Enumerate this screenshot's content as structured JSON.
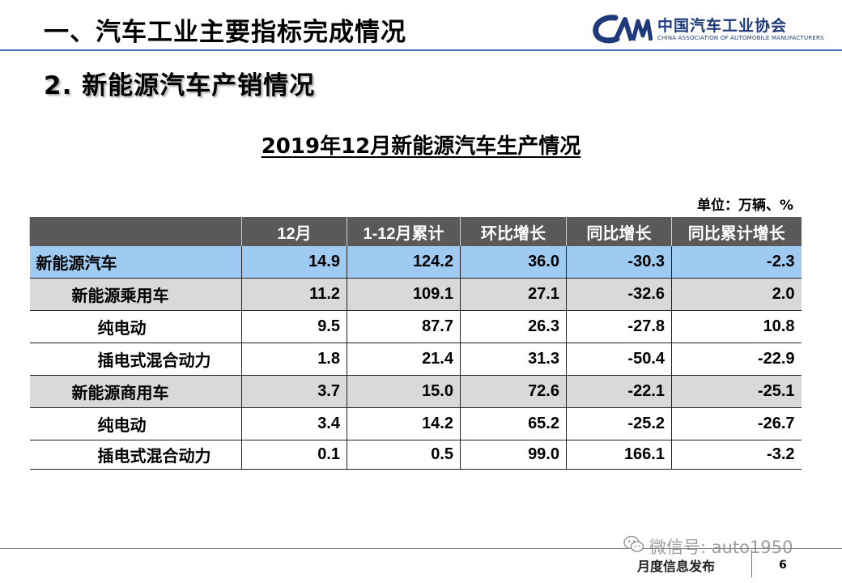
{
  "header": {
    "title": "一、汽车工业主要指标完成情况",
    "logo": {
      "name_cn": "中国汽车工业协会",
      "name_en": "CHINA ASSOCIATION OF AUTOMOBILE MANUFACTURERS",
      "mark_text": "CAAM",
      "color": "#1f3a7a"
    }
  },
  "section": {
    "title": "2. 新能源汽车产销情况"
  },
  "table": {
    "title": "2019年12月新能源汽车生产情况",
    "unit": "单位：万辆、%",
    "columns": [
      "",
      "12月",
      "1-12月累计",
      "环比增长",
      "同比增长",
      "同比累计增长"
    ],
    "rows": [
      {
        "level": 0,
        "name": "新能源汽车",
        "dec": "14.9",
        "ytd": "124.2",
        "mom": "36.0",
        "yoy": "-30.3",
        "ytd_yoy": "-2.3"
      },
      {
        "level": 1,
        "name": "新能源乘用车",
        "dec": "11.2",
        "ytd": "109.1",
        "mom": "27.1",
        "yoy": "-32.6",
        "ytd_yoy": "2.0"
      },
      {
        "level": 2,
        "name": "纯电动",
        "dec": "9.5",
        "ytd": "87.7",
        "mom": "26.3",
        "yoy": "-27.8",
        "ytd_yoy": "10.8"
      },
      {
        "level": 2,
        "name": "插电式混合动力",
        "dec": "1.8",
        "ytd": "21.4",
        "mom": "31.3",
        "yoy": "-50.4",
        "ytd_yoy": "-22.9"
      },
      {
        "level": 1,
        "name": "新能源商用车",
        "dec": "3.7",
        "ytd": "15.0",
        "mom": "72.6",
        "yoy": "-22.1",
        "ytd_yoy": "-25.1"
      },
      {
        "level": 2,
        "name": "纯电动",
        "dec": "3.4",
        "ytd": "14.2",
        "mom": "65.2",
        "yoy": "-25.2",
        "ytd_yoy": "-26.7"
      },
      {
        "level": 2,
        "name": "插电式混合动力",
        "dec": "0.1",
        "ytd": "0.5",
        "mom": "99.0",
        "yoy": "166.1",
        "ytd_yoy": "-3.2"
      }
    ],
    "colors": {
      "header_bg": "#595959",
      "total_row_bg": "#9fcbf3",
      "category_row_bg": "#d9d9d9"
    }
  },
  "footer": {
    "watermark": "微信号: auto1950",
    "watermark_icon": "wechat-icon",
    "label": "月度信息发布",
    "page_number": "6"
  }
}
